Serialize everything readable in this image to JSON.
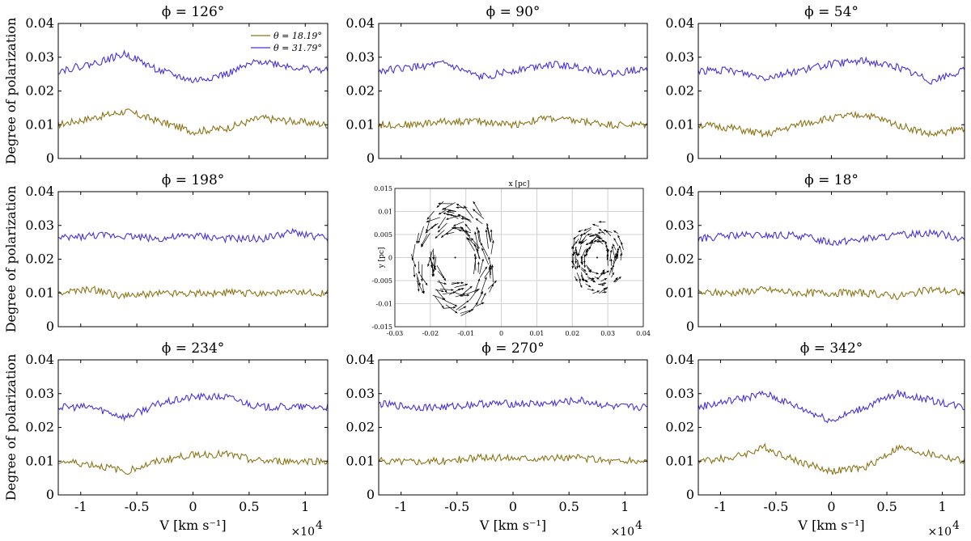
{
  "colors": {
    "theta_low": "#8c7418",
    "theta_high": "#4c2fd6",
    "grid": "#d0d0d0",
    "arrow": "#000000"
  },
  "chart_data": {
    "type": "line",
    "layout": "3x3 grid of panels; center panel is a vector field map",
    "xlabel": "V [km s⁻¹]",
    "ylabel": "Degree of polarization",
    "x_multiplier_label": "×10",
    "x_multiplier_exp": "4",
    "xlim": [
      -1.2,
      1.2
    ],
    "x_ticks": [
      -1,
      -0.5,
      0,
      0.5,
      1
    ],
    "x_tick_labels": [
      "-1",
      "-0.5",
      "0",
      "0.5",
      "1"
    ],
    "ylim": [
      0,
      0.04
    ],
    "y_ticks": [
      0,
      0.01,
      0.02,
      0.03,
      0.04
    ],
    "y_tick_labels": [
      "0",
      "0.01",
      "0.02",
      "0.03",
      "0.04"
    ],
    "legend": [
      "θ = 18.19°",
      "θ = 31.79°"
    ],
    "legend_location": "top-right of first panel",
    "panels": [
      {
        "title": "ϕ = 126°",
        "show_legend": true,
        "series": [
          {
            "name": "θ = 18.19°",
            "x": [
              -1.2,
              -0.9,
              -0.6,
              -0.3,
              0,
              0.3,
              0.6,
              0.9,
              1.2
            ],
            "y": [
              0.01,
              0.012,
              0.014,
              0.011,
              0.008,
              0.009,
              0.012,
              0.011,
              0.01
            ]
          },
          {
            "name": "θ = 31.79°",
            "x": [
              -1.2,
              -0.9,
              -0.6,
              -0.3,
              0,
              0.3,
              0.6,
              0.9,
              1.2
            ],
            "y": [
              0.026,
              0.028,
              0.031,
              0.026,
              0.023,
              0.025,
              0.029,
              0.027,
              0.026
            ]
          }
        ]
      },
      {
        "title": "ϕ = 90°",
        "show_legend": false,
        "series": [
          {
            "name": "θ = 18.19°",
            "x": [
              -1.2,
              -0.9,
              -0.6,
              -0.3,
              0,
              0.3,
              0.6,
              0.9,
              1.2
            ],
            "y": [
              0.01,
              0.01,
              0.011,
              0.011,
              0.01,
              0.012,
              0.011,
              0.01,
              0.01
            ]
          },
          {
            "name": "θ = 31.79°",
            "x": [
              -1.2,
              -0.9,
              -0.6,
              -0.3,
              0,
              0.3,
              0.6,
              0.9,
              1.2
            ],
            "y": [
              0.026,
              0.027,
              0.028,
              0.024,
              0.026,
              0.028,
              0.027,
              0.025,
              0.027
            ]
          }
        ]
      },
      {
        "title": "ϕ = 54°",
        "show_legend": false,
        "series": [
          {
            "name": "θ = 18.19°",
            "x": [
              -1.2,
              -0.9,
              -0.6,
              -0.3,
              0,
              0.3,
              0.6,
              0.9,
              1.2
            ],
            "y": [
              0.01,
              0.009,
              0.007,
              0.01,
              0.012,
              0.013,
              0.01,
              0.007,
              0.009
            ]
          },
          {
            "name": "θ = 31.79°",
            "x": [
              -1.2,
              -0.9,
              -0.6,
              -0.3,
              0,
              0.3,
              0.6,
              0.9,
              1.2
            ],
            "y": [
              0.026,
              0.026,
              0.024,
              0.026,
              0.028,
              0.029,
              0.027,
              0.023,
              0.026
            ]
          }
        ]
      },
      {
        "title": "ϕ = 198°",
        "show_legend": false,
        "series": [
          {
            "name": "θ = 18.19°",
            "x": [
              -1.2,
              -0.9,
              -0.6,
              -0.3,
              0,
              0.3,
              0.6,
              0.9,
              1.2
            ],
            "y": [
              0.01,
              0.011,
              0.009,
              0.01,
              0.01,
              0.01,
              0.01,
              0.01,
              0.01
            ]
          },
          {
            "name": "θ = 31.79°",
            "x": [
              -1.2,
              -0.9,
              -0.6,
              -0.3,
              0,
              0.3,
              0.6,
              0.9,
              1.2
            ],
            "y": [
              0.026,
              0.027,
              0.027,
              0.026,
              0.027,
              0.026,
              0.026,
              0.028,
              0.026
            ]
          }
        ]
      },
      {
        "title": "",
        "type": "vector_field",
        "xlabel": "x [pc]",
        "ylabel": "y [pc]",
        "xlim": [
          -0.03,
          0.04
        ],
        "ylim": [
          -0.015,
          0.015
        ],
        "x_ticks": [
          -0.03,
          -0.02,
          -0.01,
          0,
          0.01,
          0.02,
          0.03,
          0.04
        ],
        "x_tick_labels": [
          "-0.03",
          "-0.02",
          "-0.01",
          "0",
          "0.01",
          "0.02",
          "0.03",
          "0.04"
        ],
        "y_ticks": [
          -0.015,
          -0.01,
          -0.005,
          0,
          0.005,
          0.01,
          0.015
        ],
        "y_tick_labels": [
          "-0.015",
          "-0.01",
          "-0.005",
          "0",
          "0.005",
          "0.01",
          "0.015"
        ],
        "rings": [
          {
            "center": [
              -0.013,
              0
            ],
            "r_inner": 0.005,
            "r_outer": 0.012,
            "arrow_length": 0.0035
          },
          {
            "center": [
              0.027,
              0
            ],
            "r_inner": 0.003,
            "r_outer": 0.0075,
            "arrow_length": 0.0022
          }
        ]
      },
      {
        "title": "ϕ = 18°",
        "show_legend": false,
        "series": [
          {
            "name": "θ = 18.19°",
            "x": [
              -1.2,
              -0.9,
              -0.6,
              -0.3,
              0,
              0.3,
              0.6,
              0.9,
              1.2
            ],
            "y": [
              0.01,
              0.01,
              0.011,
              0.01,
              0.01,
              0.01,
              0.009,
              0.011,
              0.01
            ]
          },
          {
            "name": "θ = 31.79°",
            "x": [
              -1.2,
              -0.9,
              -0.6,
              -0.3,
              0,
              0.3,
              0.6,
              0.9,
              1.2
            ],
            "y": [
              0.026,
              0.027,
              0.027,
              0.027,
              0.025,
              0.026,
              0.027,
              0.028,
              0.026
            ]
          }
        ]
      },
      {
        "title": "ϕ = 234°",
        "show_legend": false,
        "series": [
          {
            "name": "θ = 18.19°",
            "x": [
              -1.2,
              -0.9,
              -0.6,
              -0.3,
              0,
              0.3,
              0.6,
              0.9,
              1.2
            ],
            "y": [
              0.01,
              0.009,
              0.007,
              0.01,
              0.012,
              0.012,
              0.01,
              0.01,
              0.01
            ]
          },
          {
            "name": "θ = 31.79°",
            "x": [
              -1.2,
              -0.9,
              -0.6,
              -0.3,
              0,
              0.3,
              0.6,
              0.9,
              1.2
            ],
            "y": [
              0.026,
              0.026,
              0.023,
              0.027,
              0.029,
              0.029,
              0.026,
              0.026,
              0.026
            ]
          }
        ]
      },
      {
        "title": "ϕ = 270°",
        "show_legend": false,
        "series": [
          {
            "name": "θ = 18.19°",
            "x": [
              -1.2,
              -0.9,
              -0.6,
              -0.3,
              0,
              0.3,
              0.6,
              0.9,
              1.2
            ],
            "y": [
              0.01,
              0.01,
              0.01,
              0.011,
              0.011,
              0.011,
              0.011,
              0.01,
              0.01
            ]
          },
          {
            "name": "θ = 31.79°",
            "x": [
              -1.2,
              -0.9,
              -0.6,
              -0.3,
              0,
              0.3,
              0.6,
              0.9,
              1.2
            ],
            "y": [
              0.027,
              0.026,
              0.026,
              0.027,
              0.027,
              0.027,
              0.028,
              0.026,
              0.026
            ]
          }
        ]
      },
      {
        "title": "ϕ = 342°",
        "show_legend": false,
        "series": [
          {
            "name": "θ = 18.19°",
            "x": [
              -1.2,
              -0.9,
              -0.6,
              -0.3,
              0,
              0.3,
              0.6,
              0.9,
              1.2
            ],
            "y": [
              0.01,
              0.011,
              0.014,
              0.01,
              0.007,
              0.008,
              0.014,
              0.012,
              0.01
            ]
          },
          {
            "name": "θ = 31.79°",
            "x": [
              -1.2,
              -0.9,
              -0.6,
              -0.3,
              0,
              0.3,
              0.6,
              0.9,
              1.2
            ],
            "y": [
              0.026,
              0.028,
              0.03,
              0.026,
              0.022,
              0.026,
              0.03,
              0.028,
              0.026
            ]
          }
        ]
      }
    ]
  }
}
